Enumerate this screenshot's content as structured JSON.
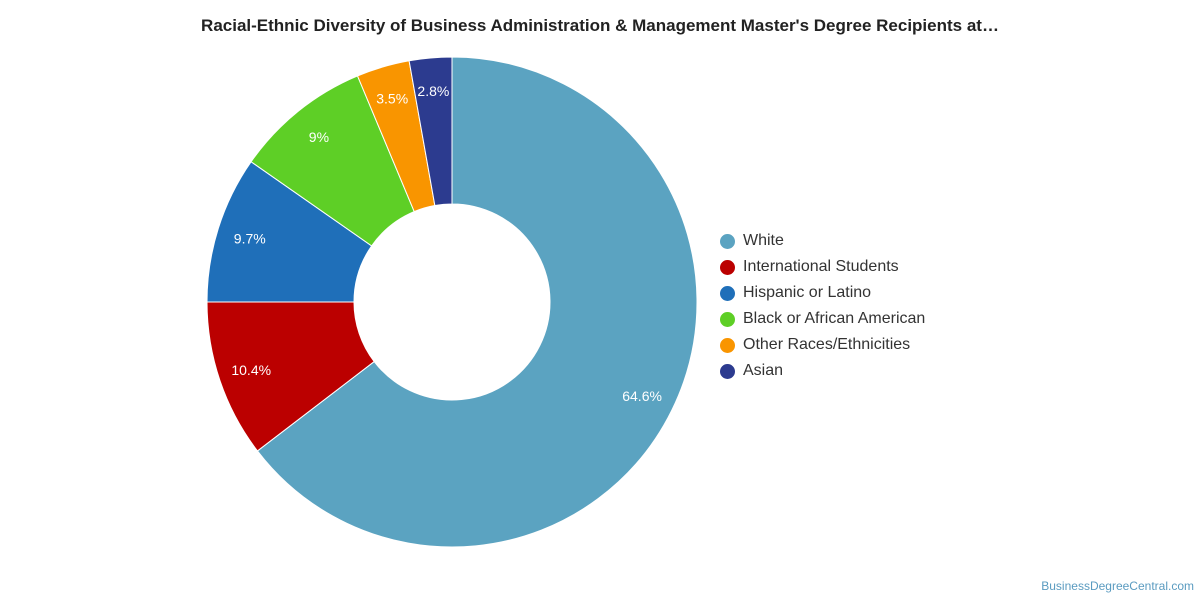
{
  "chart_data": {
    "type": "pie",
    "title": "Racial-Ethnic Diversity of Business Administration & Management Master's Degree Recipients at…",
    "donut": true,
    "start_angle_deg": 0,
    "direction": "clockwise",
    "legend_position": "right",
    "slices": [
      {
        "label": "White",
        "value": 64.6,
        "display": "64.6%",
        "color": "#5ba3c1"
      },
      {
        "label": "International Students",
        "value": 10.4,
        "display": "10.4%",
        "color": "#bb0000"
      },
      {
        "label": "Hispanic or Latino",
        "value": 9.7,
        "display": "9.7%",
        "color": "#1f6fb9"
      },
      {
        "label": "Black or African American",
        "value": 9,
        "display": "9%",
        "color": "#5ecf26"
      },
      {
        "label": "Other Races/Ethnicities",
        "value": 3.5,
        "display": "3.5%",
        "color": "#f99500"
      },
      {
        "label": "Asian",
        "value": 2.8,
        "display": "2.8%",
        "color": "#2c3b8f"
      }
    ]
  },
  "footer": {
    "credit": "BusinessDegreeCentral.com"
  }
}
